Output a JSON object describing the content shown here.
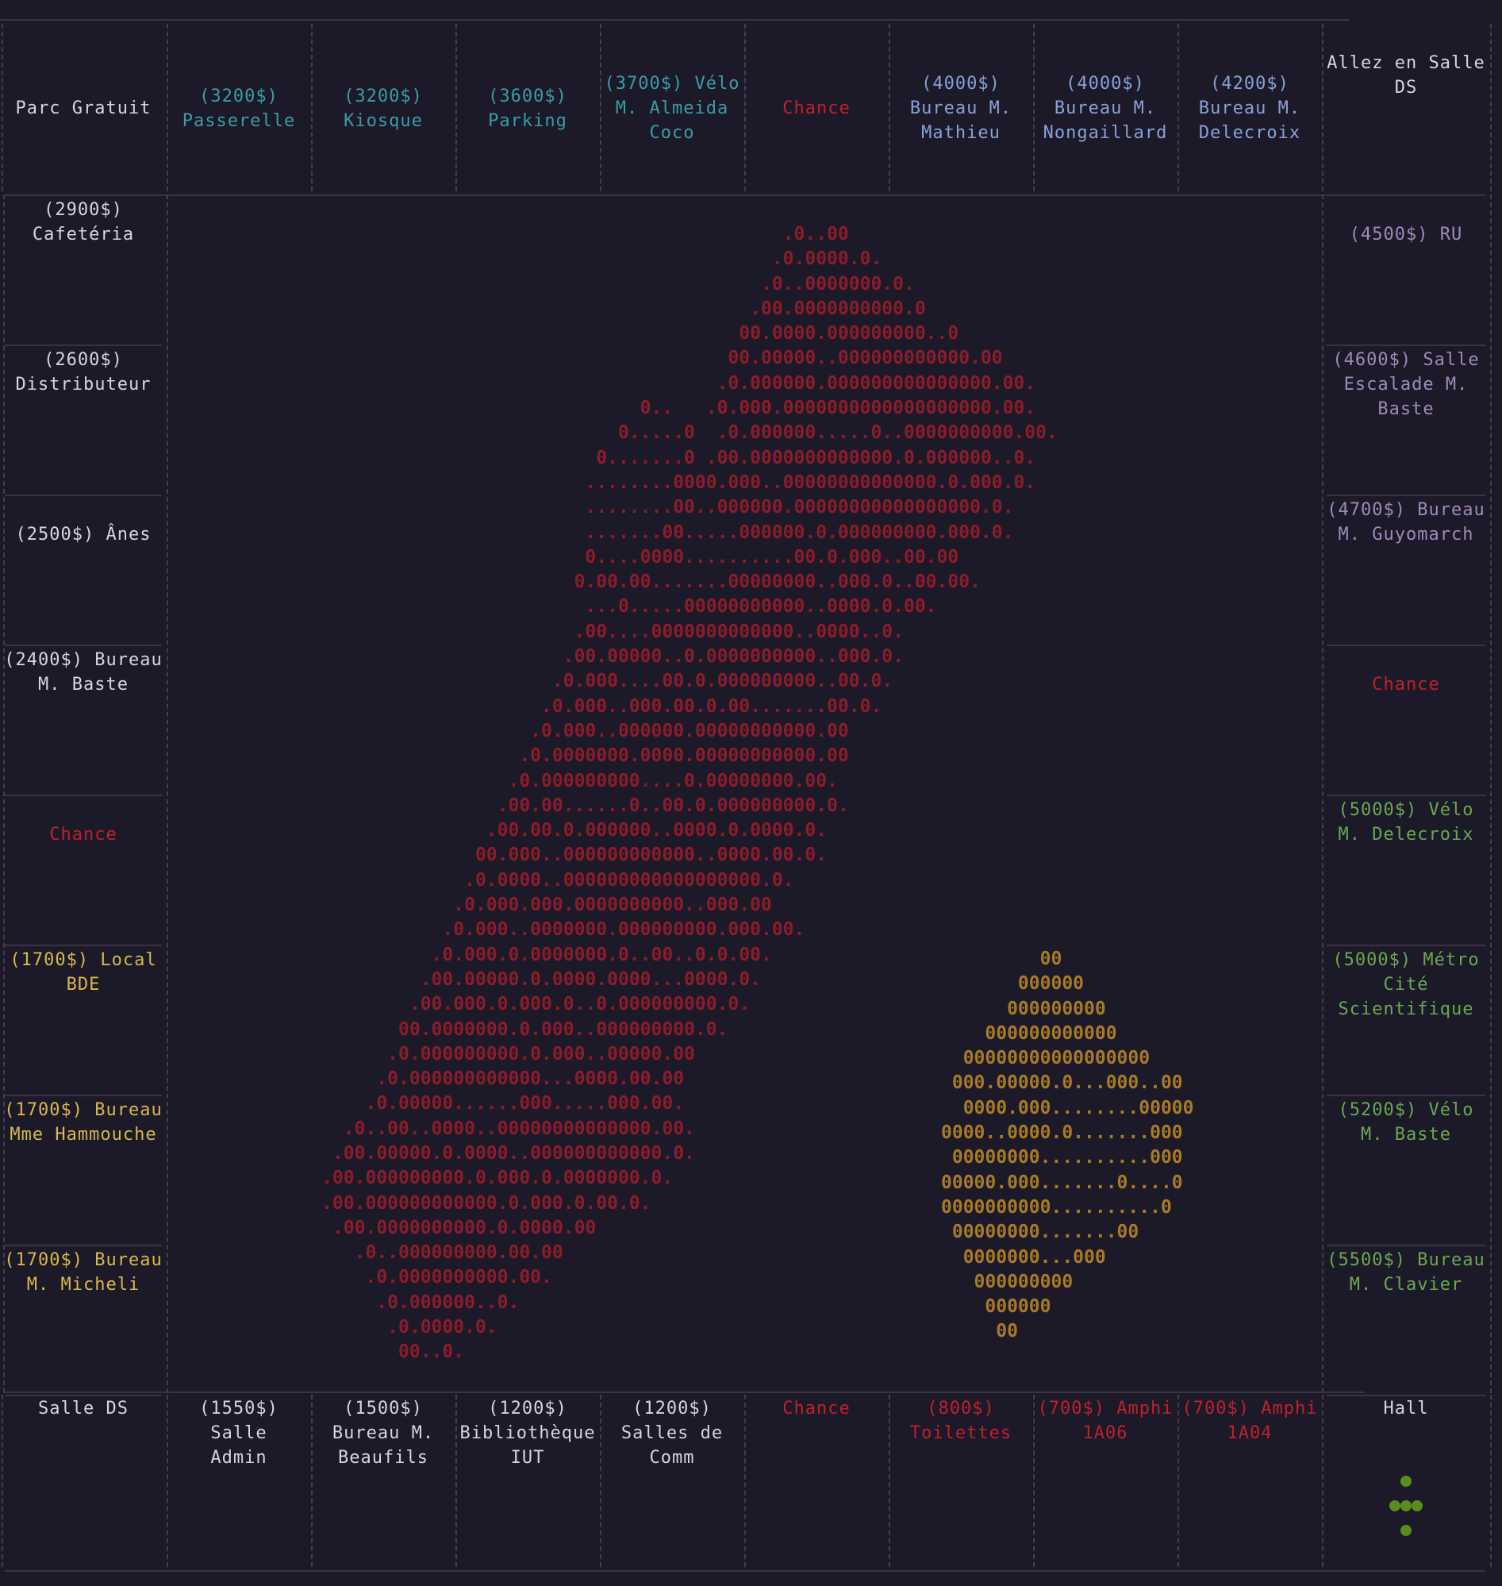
{
  "colors": {
    "background": "#1c1a29",
    "white": "#d8d4dc",
    "cyan": "#3a9ca6",
    "blue": "#8aa0d8",
    "red": "#c0202c",
    "purple": "#a08ab8",
    "green": "#6aa84f",
    "yellow": "#d8b84a",
    "art_red": "#8c1c2a",
    "art_gold": "#a87a26",
    "token_green": "#5a8c1e"
  },
  "board": {
    "top_row": [
      {
        "text": "Parc Gratuit",
        "color": "white"
      },
      {
        "text": "(3200$)\nPasserelle",
        "color": "cyan"
      },
      {
        "text": "(3200$)\nKiosque",
        "color": "cyan"
      },
      {
        "text": "(3600$)\nParking",
        "color": "cyan"
      },
      {
        "text": "(3700$) Vélo\nM. Almeida\nCoco",
        "color": "cyan"
      },
      {
        "text": "Chance",
        "color": "red"
      },
      {
        "text": "(4000$)\nBureau M.\nMathieu",
        "color": "blue"
      },
      {
        "text": "(4000$)\nBureau M.\nNongaillard",
        "color": "blue"
      },
      {
        "text": "(4200$)\nBureau M.\nDelecroix",
        "color": "blue"
      },
      {
        "text": "Allez en Salle\nDS",
        "color": "white"
      }
    ],
    "left_column": [
      {
        "text": "(2900$)\nCafetéria",
        "color": "white"
      },
      {
        "text": "(2600$)\nDistributeur",
        "color": "white"
      },
      {
        "text": "\n(2500$) Ânes",
        "color": "white"
      },
      {
        "text": "(2400$) Bureau\nM. Baste",
        "color": "white"
      },
      {
        "text": "\nChance",
        "color": "red"
      },
      {
        "text": "(1700$) Local\nBDE",
        "color": "yellow"
      },
      {
        "text": "(1700$) Bureau\nMme Hammouche",
        "color": "yellow"
      },
      {
        "text": "(1700$) Bureau\nM. Micheli",
        "color": "yellow"
      }
    ],
    "right_column": [
      {
        "text": "\n(4500$) RU",
        "color": "purple"
      },
      {
        "text": "(4600$) Salle\nEscalade M.\nBaste",
        "color": "purple"
      },
      {
        "text": "(4700$) Bureau\nM. Guyomarch",
        "color": "purple"
      },
      {
        "text": "\nChance",
        "color": "red"
      },
      {
        "text": "(5000$) Vélo\nM. Delecroix",
        "color": "green"
      },
      {
        "text": "(5000$) Métro\nCité\nScientifique",
        "color": "green"
      },
      {
        "text": "(5200$) Vélo\nM. Baste",
        "color": "green"
      },
      {
        "text": "(5500$) Bureau\nM. Clavier",
        "color": "green"
      }
    ],
    "bottom_row": [
      {
        "text": "Salle DS",
        "color": "white"
      },
      {
        "text": "(1550$) Salle\nAdmin",
        "color": "white"
      },
      {
        "text": "(1500$)\nBureau M.\nBeaufils",
        "color": "white"
      },
      {
        "text": "(1200$)\nBibliothèque\nIUT",
        "color": "white"
      },
      {
        "text": "(1200$)\nSalles de\nComm",
        "color": "white"
      },
      {
        "text": "Chance",
        "color": "red"
      },
      {
        "text": "(800$)\nToilettes",
        "color": "red"
      },
      {
        "text": "(700$) Amphi\n1A06",
        "color": "red"
      },
      {
        "text": "(700$) Amphi\n1A04",
        "color": "red"
      },
      {
        "text": "Hall",
        "color": "white"
      }
    ]
  },
  "center_art": {
    "diagonal": [
      "                                                .0..00",
      "                                               .0.0000.0.",
      "                                              .0..0000000.0.",
      "                                             .00.0000000000.0",
      "                                            00.0000.000000000..0",
      "                                           00.00000..000000000000.00",
      "                                          .0.000000.000000000000000.00.",
      "                                   0..   .0.000.0000000000000000000.00.",
      "                                 0.....0  .0.000000.....0..0000000000.00.",
      "                               0.......0 .00.0000000000000.0.000000..0.",
      "                              ........0000.000..00000000000000.0.000.0.",
      "                              ........00..000000.00000000000000000.0.",
      "                              .......00.....000000.0.000000000.000.0.",
      "                              0....0000..........00.0.000..00.00",
      "                             0.00.00.......00000000..000.0..00.00.",
      "                              ...0.....00000000000..0000.0.00.",
      "                             .00....0000000000000..0000..0.",
      "                            .00.00000..0.0000000000..000.0.",
      "                           .0.000....00.0.000000000..00.0.",
      "                          .0.000..000.00.0.00.......00.0.",
      "                         .0.000..000000.00000000000.00",
      "                        .0.0000000.0000.00000000000.00",
      "                       .0.000000000....0.00000000.00.",
      "                      .00.00......0..00.0.000000000.0.",
      "                     .00.00.0.000000..0000.0.0000.0.",
      "                    00.000..000000000000..0000.00.0.",
      "                   .0.0000..000000000000000000.0.",
      "                  .0.000.000.0000000000..000.00",
      "                 .0.000..0000000.000000000.000.00.",
      "                .0.000.0.0000000.0..00..0.0.00.",
      "               .00.00000.0.0000.0000...0000.0.",
      "              .00.000.0.000.0..0.000000000.0.",
      "             00.0000000.0.000..000000000.0.",
      "            .0.000000000.0.000..00000.00",
      "           .0.000000000000...0000.00.00",
      "          .0.00000......000.....000.00.",
      "        .0..00..0000..00000000000000.00.",
      "       .00.00000.0.0000..000000000000.0.",
      "      .00.000000000.0.000.0.0000000.0.",
      "      .00.000000000000.0.000.0.00.0.",
      "       .00.0000000000.0.0000.00",
      "         .0..000000000.00.00",
      "          .0.0000000000.00.",
      "           .0.000000..0.",
      "            .0.0000.0.",
      "             00..0."
    ],
    "diamond": [
      "         00",
      "       000000",
      "      000000000",
      "    000000000000",
      "  00000000000000000",
      " 000.00000.0...000..00",
      "  0000.000........00000",
      "0000..0000.0.......000",
      " 00000000..........000",
      "00000.000.......0....0",
      "0000000000..........0",
      " 00000000.......00",
      "  0000000...000",
      "   000000000",
      "    000000",
      "     00"
    ]
  }
}
